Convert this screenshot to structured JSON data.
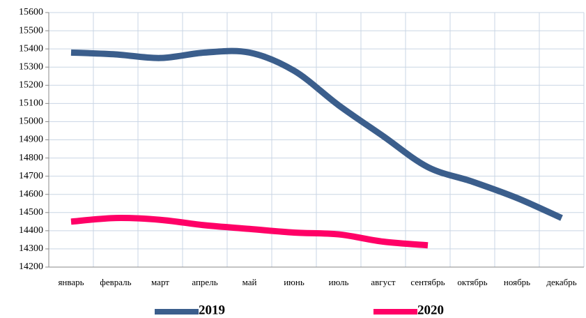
{
  "chart_data": {
    "type": "line",
    "categories": [
      "январь",
      "февраль",
      "март",
      "апрель",
      "май",
      "июнь",
      "июль",
      "август",
      "сентябрь",
      "октябрь",
      "ноябрь",
      "декабрь"
    ],
    "series": [
      {
        "name": "2019",
        "color": "#3b5e8c",
        "values": [
          15380,
          15370,
          15350,
          15380,
          15380,
          15280,
          15090,
          14920,
          14750,
          14670,
          14580,
          14470
        ]
      },
      {
        "name": "2020",
        "color": "#ff0066",
        "values": [
          14450,
          14470,
          14460,
          14430,
          14410,
          14390,
          14380,
          14340,
          14320,
          null,
          null,
          null
        ]
      }
    ],
    "ylim": [
      14200,
      15600
    ],
    "yticks": [
      14200,
      14300,
      14400,
      14500,
      14600,
      14700,
      14800,
      14900,
      15000,
      15100,
      15200,
      15300,
      15400,
      15500,
      15600
    ],
    "grid": true
  }
}
